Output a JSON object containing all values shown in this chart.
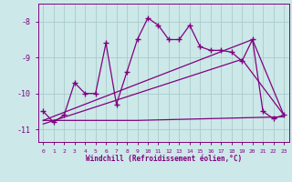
{
  "title": "",
  "xlabel": "Windchill (Refroidissement éolien,°C)",
  "background_color": "#cce8e8",
  "line_color": "#800080",
  "grid_color": "#aacccc",
  "x_hours": [
    0,
    1,
    2,
    3,
    4,
    5,
    6,
    7,
    8,
    9,
    10,
    11,
    12,
    13,
    14,
    15,
    16,
    17,
    18,
    19,
    20,
    21,
    22,
    23
  ],
  "y_main": [
    -10.5,
    -10.8,
    -10.6,
    -9.7,
    -10.0,
    -10.0,
    -8.6,
    -10.3,
    -9.4,
    -8.5,
    -7.9,
    -8.1,
    -8.5,
    -8.5,
    -8.1,
    -8.7,
    -8.8,
    -8.8,
    -8.85,
    -9.1,
    -8.5,
    -10.5,
    -10.7,
    -10.6
  ],
  "y_line1_x": [
    0,
    9,
    23
  ],
  "y_line1_y": [
    -10.75,
    -10.75,
    -10.65
  ],
  "y_line2_x": [
    0,
    20,
    23
  ],
  "y_line2_y": [
    -10.75,
    -8.5,
    -10.6
  ],
  "y_line3_x": [
    0,
    19,
    23
  ],
  "y_line3_y": [
    -10.85,
    -9.05,
    -10.6
  ],
  "ylim": [
    -11.35,
    -7.5
  ],
  "yticks": [
    -11,
    -10,
    -9,
    -8
  ],
  "xticks": [
    0,
    1,
    2,
    3,
    4,
    5,
    6,
    7,
    8,
    9,
    10,
    11,
    12,
    13,
    14,
    15,
    16,
    17,
    18,
    19,
    20,
    21,
    22,
    23
  ]
}
